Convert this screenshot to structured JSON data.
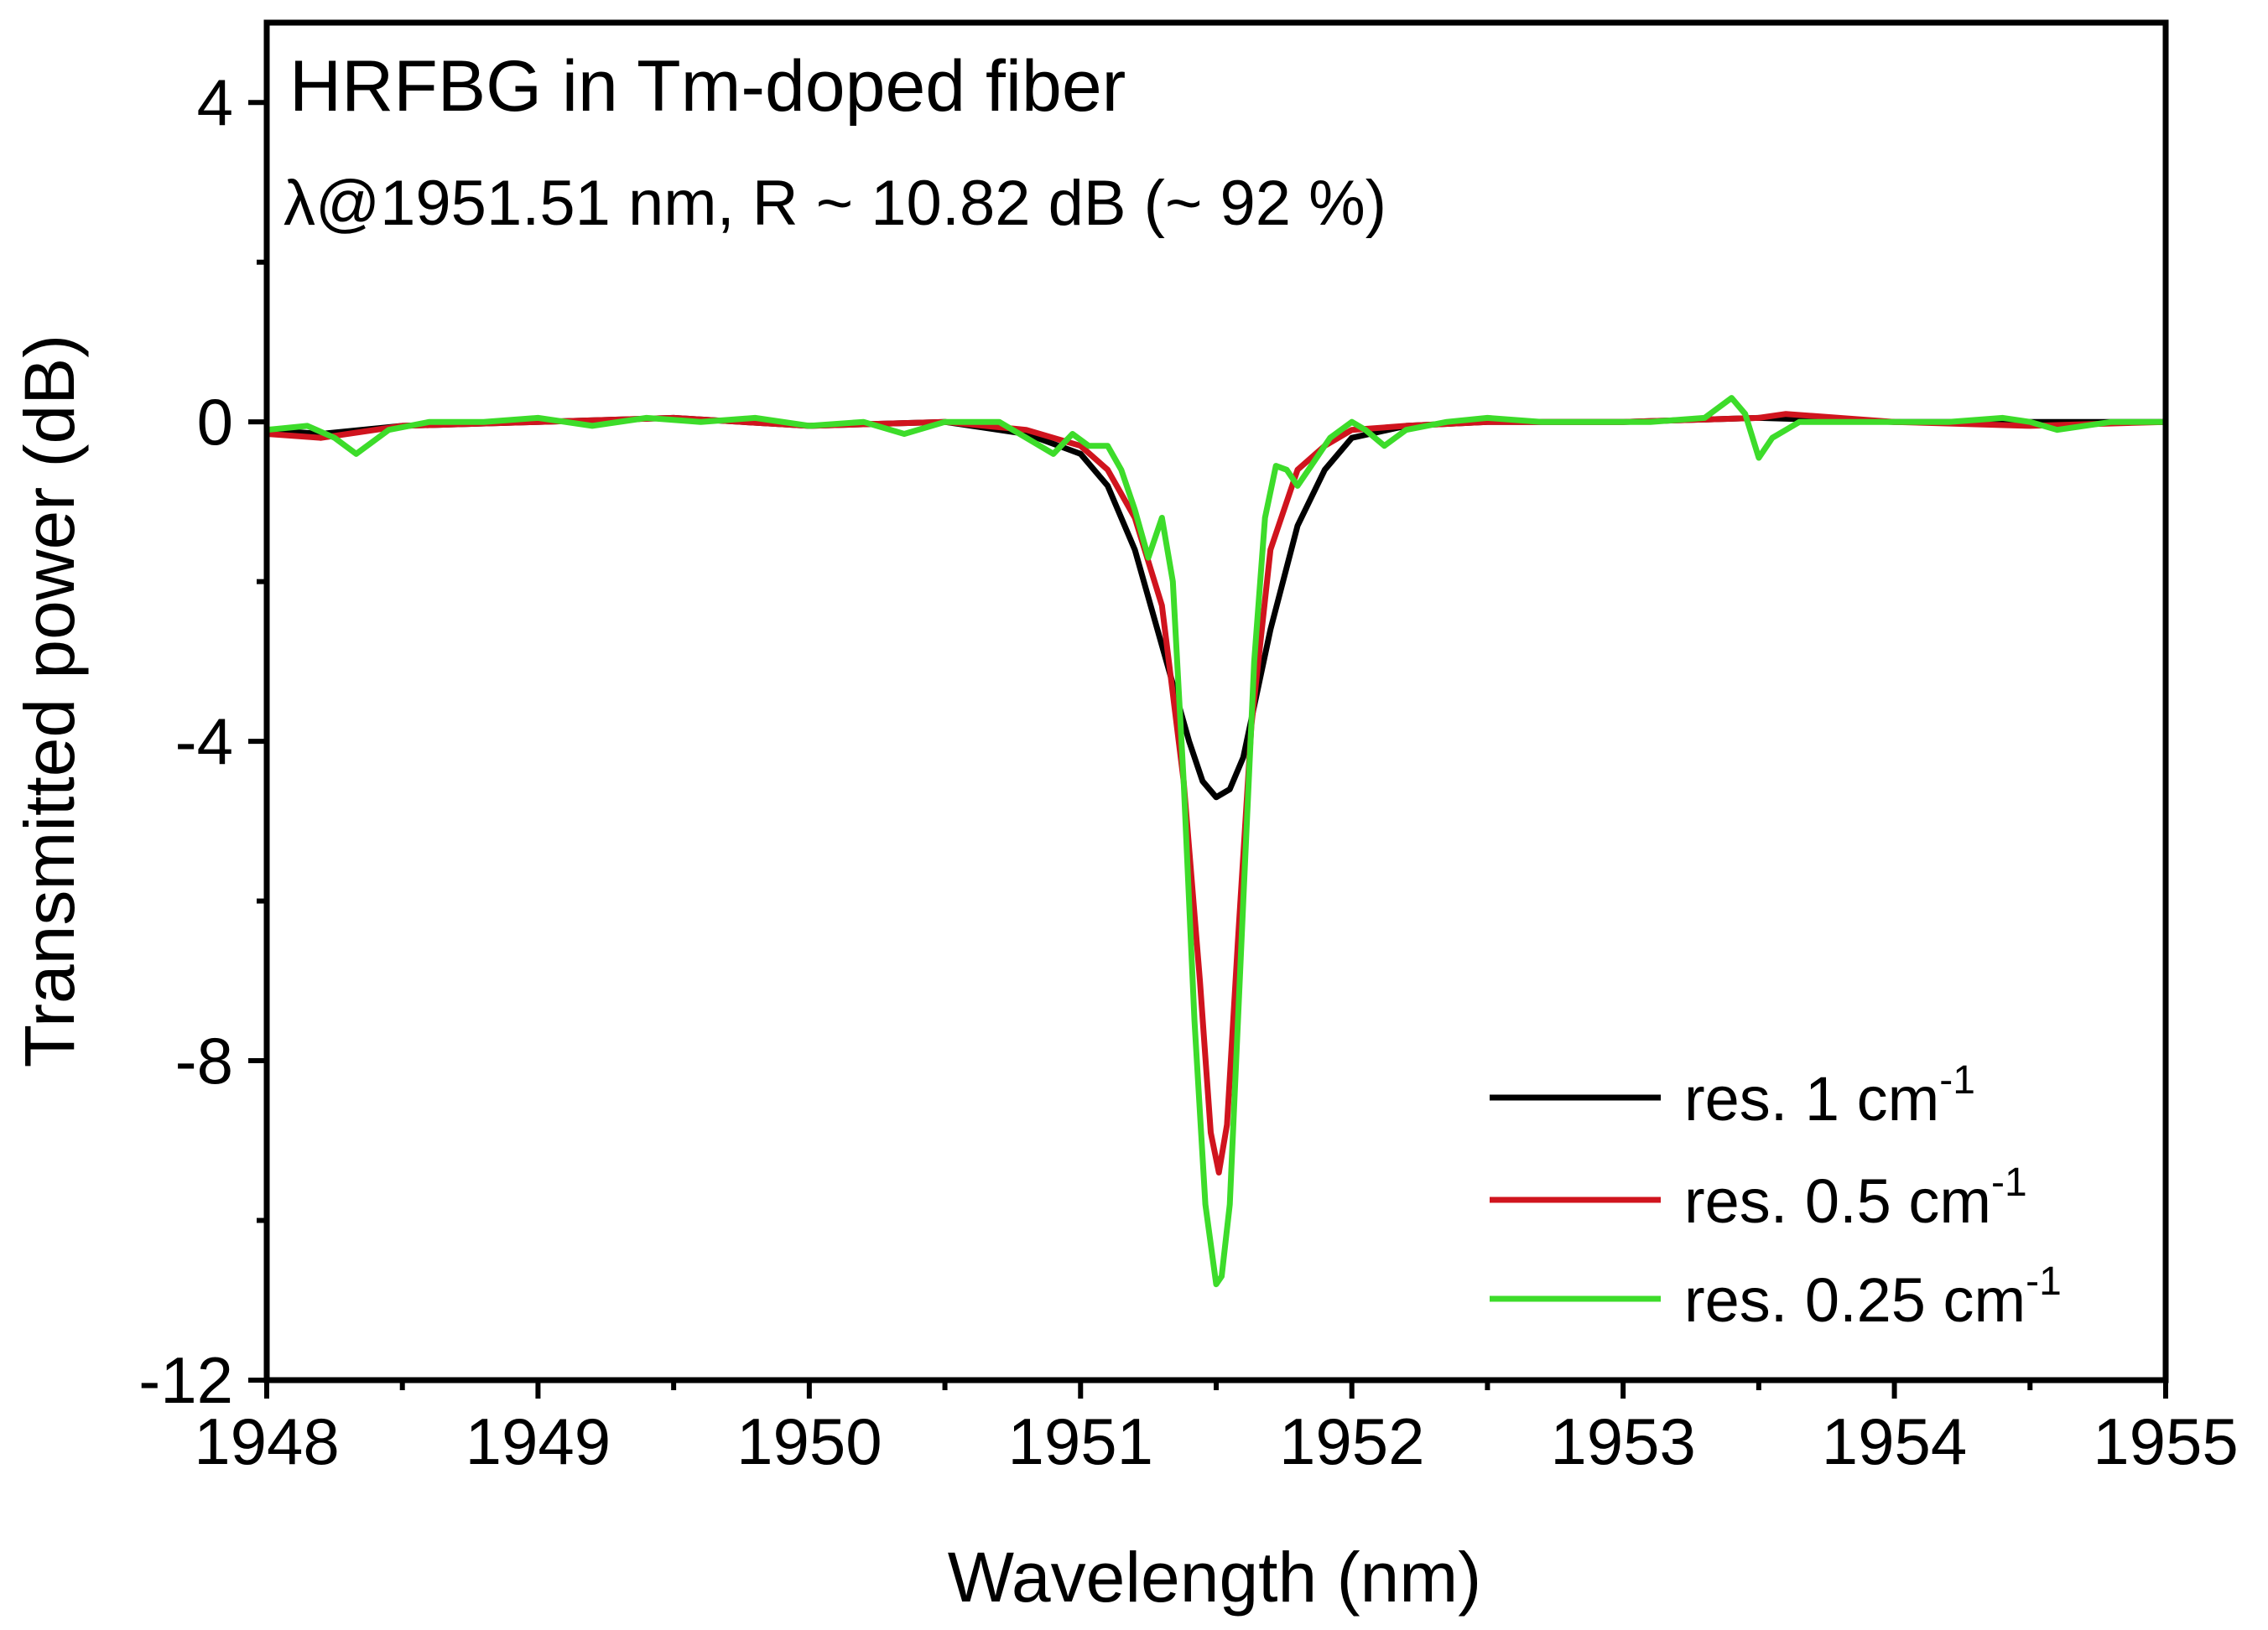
{
  "chart_data": {
    "type": "line",
    "xlabel": "Wavelength (nm)",
    "ylabel": "Transmitted power (dB)",
    "xlim": [
      1948,
      1955
    ],
    "ylim": [
      -12,
      5
    ],
    "xticks": [
      1948,
      1949,
      1950,
      1951,
      1952,
      1953,
      1954,
      1955
    ],
    "yticks": [
      -12,
      -8,
      -4,
      0,
      4
    ],
    "annotations": [
      "HRFBG in Tm-doped fiber",
      "λ@1951.51 nm, R ~ 10.82 dB (~ 92 %)"
    ],
    "legend_position": "bottom-right",
    "series": [
      {
        "name": "res. 1 cm-1",
        "label_main": "res. 1 cm",
        "label_sup": "-1",
        "color": "#000000",
        "x": [
          1948.0,
          1948.2,
          1948.5,
          1949.0,
          1949.5,
          1950.0,
          1950.5,
          1950.8,
          1951.0,
          1951.1,
          1951.2,
          1951.3,
          1951.4,
          1951.45,
          1951.5,
          1951.55,
          1951.6,
          1951.7,
          1951.8,
          1951.9,
          1952.0,
          1952.2,
          1952.5,
          1953.0,
          1953.5,
          1954.0,
          1954.5,
          1955.0
        ],
        "y": [
          -0.1,
          -0.15,
          -0.05,
          0.0,
          0.05,
          -0.05,
          0.0,
          -0.15,
          -0.4,
          -0.8,
          -1.6,
          -2.8,
          -4.0,
          -4.5,
          -4.7,
          -4.6,
          -4.2,
          -2.6,
          -1.3,
          -0.6,
          -0.2,
          -0.05,
          0.0,
          0.0,
          0.05,
          0.0,
          0.0,
          0.0
        ]
      },
      {
        "name": "res. 0.5 cm-1",
        "label_main": "res. 0.5 cm",
        "label_sup": "-1",
        "color": "#d0141e",
        "x": [
          1948.0,
          1948.2,
          1948.5,
          1949.0,
          1949.5,
          1950.0,
          1950.5,
          1950.8,
          1951.0,
          1951.1,
          1951.2,
          1951.3,
          1951.38,
          1951.44,
          1951.48,
          1951.51,
          1951.54,
          1951.58,
          1951.63,
          1951.7,
          1951.8,
          1951.9,
          1952.0,
          1952.2,
          1952.5,
          1953.0,
          1953.5,
          1953.6,
          1954.0,
          1954.5,
          1955.0
        ],
        "y": [
          -0.15,
          -0.2,
          -0.05,
          0.0,
          0.05,
          -0.05,
          0.0,
          -0.1,
          -0.3,
          -0.6,
          -1.2,
          -2.3,
          -4.5,
          -7.0,
          -8.9,
          -9.4,
          -8.8,
          -6.5,
          -3.8,
          -1.6,
          -0.6,
          -0.3,
          -0.1,
          -0.05,
          0.0,
          0.0,
          0.05,
          0.1,
          0.0,
          -0.05,
          0.0
        ]
      },
      {
        "name": "res. 0.25 cm-1",
        "label_main": "res. 0.25 cm",
        "label_sup": "-1",
        "color": "#3ddc2a",
        "x": [
          1948.0,
          1948.15,
          1948.25,
          1948.33,
          1948.45,
          1948.6,
          1948.8,
          1949.0,
          1949.2,
          1949.4,
          1949.6,
          1949.8,
          1950.0,
          1950.2,
          1950.35,
          1950.5,
          1950.7,
          1950.8,
          1950.9,
          1950.97,
          1951.03,
          1951.1,
          1951.15,
          1951.2,
          1951.25,
          1951.3,
          1951.34,
          1951.38,
          1951.42,
          1951.46,
          1951.5,
          1951.52,
          1951.55,
          1951.6,
          1951.64,
          1951.68,
          1951.72,
          1951.76,
          1951.8,
          1951.85,
          1951.92,
          1952.0,
          1952.05,
          1952.12,
          1952.2,
          1952.35,
          1952.5,
          1952.7,
          1952.9,
          1953.1,
          1953.3,
          1953.4,
          1953.45,
          1953.5,
          1953.55,
          1953.65,
          1953.8,
          1954.0,
          1954.2,
          1954.4,
          1954.5,
          1954.6,
          1954.8,
          1955.0
        ],
        "y": [
          -0.1,
          -0.05,
          -0.2,
          -0.4,
          -0.1,
          0.0,
          0.0,
          0.05,
          -0.05,
          0.05,
          0.0,
          0.05,
          -0.05,
          0.0,
          -0.15,
          0.0,
          0.0,
          -0.2,
          -0.4,
          -0.15,
          -0.3,
          -0.3,
          -0.6,
          -1.1,
          -1.7,
          -1.2,
          -2.0,
          -4.5,
          -7.5,
          -9.8,
          -10.8,
          -10.7,
          -9.8,
          -6.0,
          -3.0,
          -1.2,
          -0.55,
          -0.6,
          -0.8,
          -0.55,
          -0.2,
          0.0,
          -0.1,
          -0.3,
          -0.1,
          0.0,
          0.05,
          0.0,
          0.0,
          0.0,
          0.05,
          0.3,
          0.1,
          -0.45,
          -0.2,
          0.0,
          0.0,
          0.0,
          0.0,
          0.05,
          0.0,
          -0.1,
          0.0,
          0.0
        ]
      }
    ]
  }
}
